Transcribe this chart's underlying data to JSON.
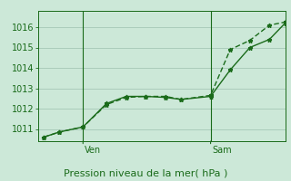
{
  "background_color": "#cce8d8",
  "grid_color": "#aaccbb",
  "line_color": "#1a6b1a",
  "marker_color": "#1a6b1a",
  "xlabel": "Pression niveau de la mer( hPa )",
  "xlabel_fontsize": 8,
  "ylim": [
    1010.4,
    1016.8
  ],
  "yticks": [
    1011,
    1012,
    1013,
    1014,
    1015,
    1016
  ],
  "ylabel_fontsize": 7,
  "ven_x": 2.0,
  "sam_x": 8.5,
  "xlim": [
    -0.3,
    12.3
  ],
  "series1_x": [
    0,
    0.8,
    2.0,
    3.2,
    4.2,
    5.2,
    6.2,
    7.0,
    8.5,
    9.5,
    10.5,
    11.5,
    12.3
  ],
  "series1_y": [
    1010.6,
    1010.85,
    1011.1,
    1012.25,
    1012.6,
    1012.6,
    1012.55,
    1012.45,
    1012.6,
    1013.9,
    1015.0,
    1015.4,
    1016.2
  ],
  "series2_x": [
    0,
    0.8,
    2.0,
    3.2,
    4.2,
    5.2,
    6.2,
    7.0,
    8.5,
    9.5,
    10.5,
    11.5,
    12.3
  ],
  "series2_y": [
    1010.6,
    1010.85,
    1011.1,
    1012.2,
    1012.55,
    1012.6,
    1012.6,
    1012.45,
    1012.65,
    1014.9,
    1015.35,
    1016.1,
    1016.25
  ]
}
